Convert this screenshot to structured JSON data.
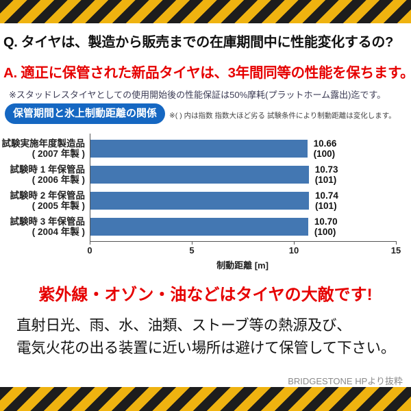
{
  "qa": {
    "question": "Q. タイヤは、製造から販売までの在庫期間中に性能変化するの?",
    "answer": "A. 適正に保管された新品タイヤは、3年間同等の性能を保ちます。",
    "answer_note": "※スタッドレスタイヤとしての使用開始後の性能保証は50%摩耗(プラットホーム露出)迄です。"
  },
  "chart": {
    "badge": "保管期間と氷上制動距離の関係",
    "note": "※( ) 内は指数 指数大ほど劣る 試験条件により制動距離は変化します。"
  },
  "chart_data": {
    "type": "bar",
    "orientation": "horizontal",
    "title": "保管期間と氷上制動距離の関係",
    "xlabel": "制動距離 [m]",
    "xlim": [
      0,
      15
    ],
    "xticks": [
      0,
      5,
      10,
      15
    ],
    "bar_color": "#4377b2",
    "grid": false,
    "rows": [
      {
        "label": "試験実施年度製造品",
        "sublabel": "( 2007 年製 )",
        "value": 10.66,
        "value_label": "10.66",
        "index": "(100)"
      },
      {
        "label": "試験時 1 年保管品",
        "sublabel": "( 2006 年製 )",
        "value": 10.73,
        "value_label": "10.73",
        "index": "(101)"
      },
      {
        "label": "試験時 2 年保管品",
        "sublabel": "( 2005 年製 )",
        "value": 10.74,
        "value_label": "10.74",
        "index": "(101)"
      },
      {
        "label": "試験時 3 年保管品",
        "sublabel": "( 2004 年製 )",
        "value": 10.7,
        "value_label": "10.70",
        "index": "(100)"
      }
    ]
  },
  "warning": {
    "headline": "紫外線・オゾン・油などはタイヤの大敵です!",
    "body_line1": "直射日光、雨、水、油類、ストーブ等の熱源及び、",
    "body_line2": "電気火花の出る装置に近い場所は避けて保管して下さい。"
  },
  "footer": {
    "attribution": "BRIDGESTONE HPより抜粋"
  },
  "colors": {
    "accent_red": "#e60000",
    "badge_blue": "#1567c2",
    "bar_blue": "#4377b2",
    "hazard_yellow": "#efb310",
    "hazard_black": "#1d1d1d"
  }
}
